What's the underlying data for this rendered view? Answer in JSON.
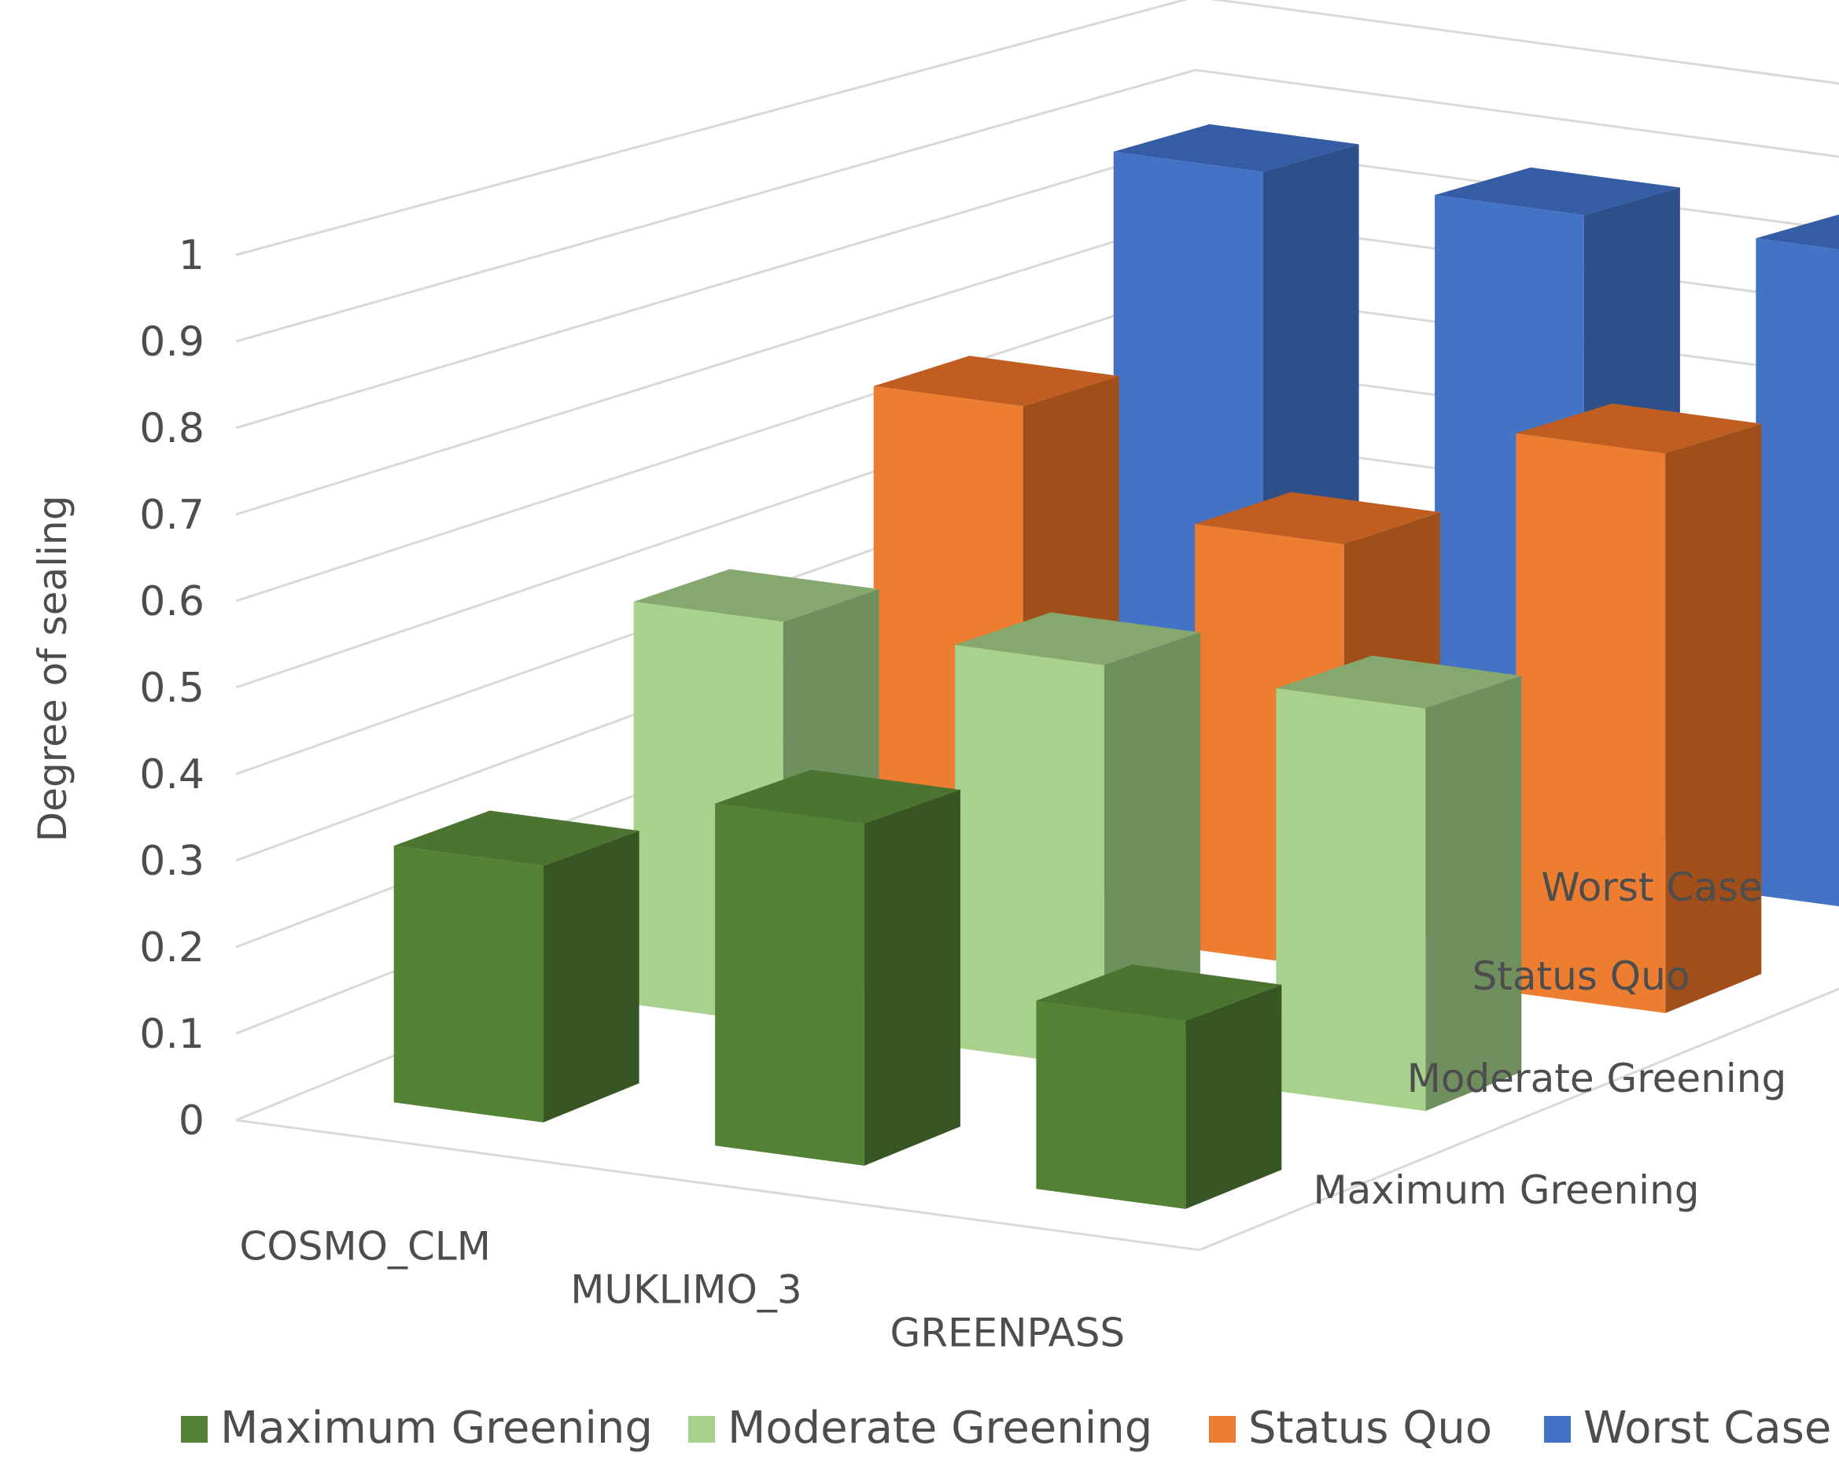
{
  "chart_data": {
    "type": "bar",
    "title": "",
    "xlabel": "",
    "ylabel": "Degree of sealing",
    "ylim": [
      0,
      1
    ],
    "yticks": [
      "0",
      "0.1",
      "0.2",
      "0.3",
      "0.4",
      "0.5",
      "0.6",
      "0.7",
      "0.8",
      "0.9",
      "1"
    ],
    "categories": [
      "COSMO_CLM",
      "MUKLIMO_3",
      "GREENPASS"
    ],
    "depth_labels": [
      "Worst Case",
      "Status Quo",
      "Moderate Greening",
      "Maximum Greening"
    ],
    "legend_position": "bottom",
    "grid": true,
    "series": [
      {
        "name": "Maximum Greening",
        "values": [
          0.3,
          0.4,
          0.22
        ],
        "color": "#548235",
        "side": "#375623",
        "top": "#4a7430"
      },
      {
        "name": "Moderate Greening",
        "values": [
          0.49,
          0.49,
          0.49
        ],
        "color": "#a9d18e",
        "side": "#708f5e",
        "top": "#85a86f"
      },
      {
        "name": "Status Quo",
        "values": [
          0.66,
          0.54,
          0.71
        ],
        "color": "#ed7d31",
        "side": "#a14f1a",
        "top": "#c05e22"
      },
      {
        "name": "Worst Case",
        "values": [
          0.87,
          0.87,
          0.87
        ],
        "color": "#4472c4",
        "side": "#2d4f8a",
        "top": "#345da6"
      }
    ]
  }
}
